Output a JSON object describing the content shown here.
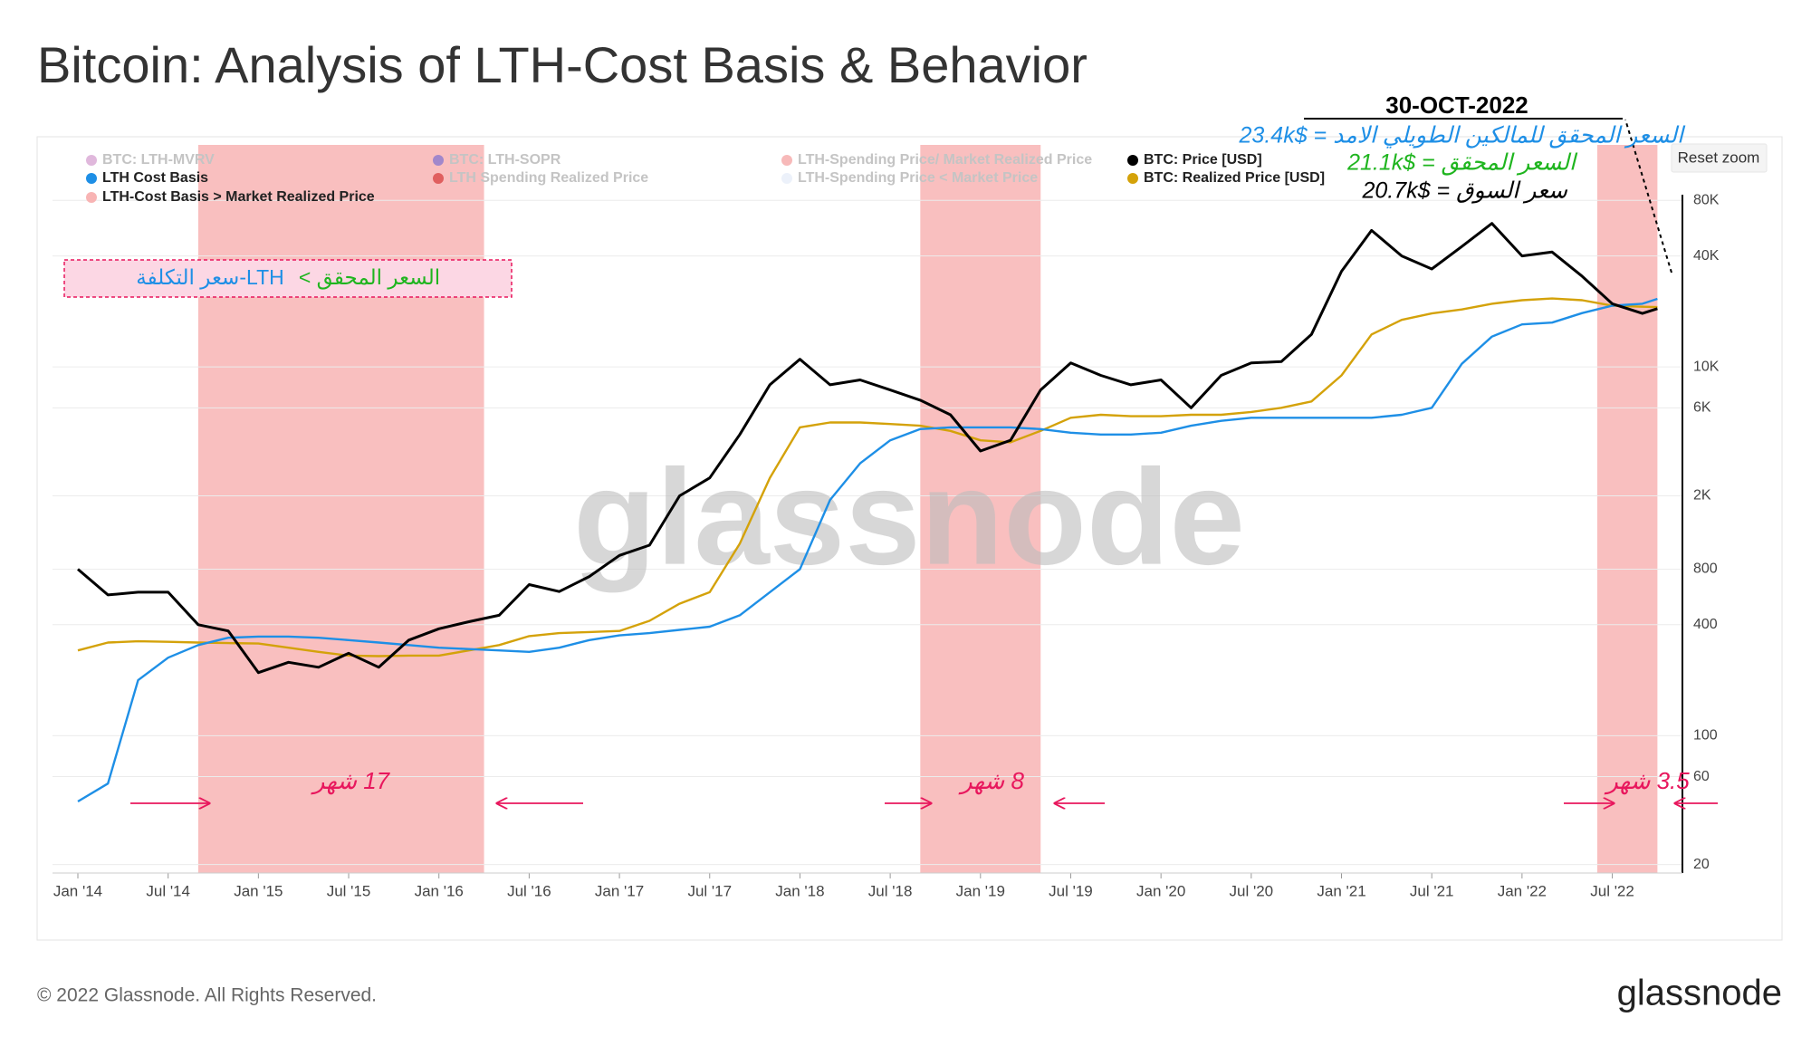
{
  "page": {
    "copyright": "© 2022 Glassnode. All Rights Reserved.",
    "logo": "glassnode",
    "watermark": "glassnode",
    "reset_zoom": "Reset zoom"
  },
  "chart_data": {
    "type": "line",
    "title": "Bitcoin: Analysis of LTH-Cost Basis &  Behavior",
    "x": [
      "2014-01",
      "2014-03",
      "2014-05",
      "2014-07",
      "2014-09",
      "2014-11",
      "2015-01",
      "2015-03",
      "2015-05",
      "2015-07",
      "2015-09",
      "2015-11",
      "2016-01",
      "2016-03",
      "2016-05",
      "2016-07",
      "2016-09",
      "2016-11",
      "2017-01",
      "2017-03",
      "2017-05",
      "2017-07",
      "2017-09",
      "2017-11",
      "2018-01",
      "2018-03",
      "2018-05",
      "2018-07",
      "2018-09",
      "2018-11",
      "2019-01",
      "2019-03",
      "2019-05",
      "2019-07",
      "2019-09",
      "2019-11",
      "2020-01",
      "2020-03",
      "2020-05",
      "2020-07",
      "2020-09",
      "2020-11",
      "2021-01",
      "2021-03",
      "2021-05",
      "2021-07",
      "2021-09",
      "2021-11",
      "2022-01",
      "2022-03",
      "2022-05",
      "2022-07",
      "2022-09",
      "2022-10"
    ],
    "series": [
      {
        "name": "BTC: Price [USD]",
        "color": "#000000",
        "width": 3,
        "values": [
          800,
          580,
          600,
          600,
          400,
          370,
          220,
          250,
          235,
          280,
          235,
          330,
          380,
          415,
          450,
          660,
          605,
          730,
          950,
          1080,
          2000,
          2500,
          4300,
          8000,
          11000,
          8000,
          8500,
          7500,
          6600,
          5500,
          3500,
          4000,
          7500,
          10500,
          9000,
          8000,
          8500,
          6000,
          9000,
          10500,
          10700,
          15000,
          33000,
          55000,
          40000,
          34000,
          45000,
          60000,
          40000,
          42000,
          31000,
          22000,
          19500,
          20700
        ]
      },
      {
        "name": "BTC: Realized Price [USD]",
        "color": "#d4a20a",
        "width": 2.4,
        "values": [
          290,
          320,
          325,
          323,
          320,
          318,
          316,
          300,
          285,
          272,
          270,
          272,
          272,
          290,
          310,
          347,
          360,
          365,
          370,
          420,
          520,
          600,
          1100,
          2500,
          4700,
          5000,
          5000,
          4900,
          4800,
          4500,
          4000,
          3900,
          4500,
          5300,
          5500,
          5400,
          5400,
          5500,
          5500,
          5700,
          6000,
          6500,
          9000,
          15000,
          18000,
          19500,
          20500,
          22000,
          23000,
          23500,
          23000,
          21500,
          21200,
          21100
        ]
      },
      {
        "name": "LTH Cost Basis",
        "color": "#1e8fe6",
        "width": 2.4,
        "values": [
          44,
          55,
          200,
          265,
          310,
          340,
          345,
          345,
          340,
          330,
          320,
          310,
          300,
          295,
          290,
          285,
          300,
          330,
          350,
          360,
          375,
          390,
          450,
          600,
          800,
          1900,
          3000,
          4000,
          4600,
          4700,
          4700,
          4700,
          4600,
          4400,
          4300,
          4300,
          4400,
          4800,
          5100,
          5300,
          5300,
          5300,
          5300,
          5300,
          5500,
          6000,
          10400,
          14600,
          17000,
          17400,
          19600,
          21500,
          22000,
          23400
        ]
      }
    ],
    "bands": {
      "name": "LTH-Cost Basis > Market Realized Price",
      "color": "#f8b4b4",
      "ranges": [
        [
          "2014-09",
          "2016-04"
        ],
        [
          "2018-09",
          "2019-05"
        ],
        [
          "2022-06",
          "2022-10"
        ]
      ]
    },
    "legend_items": [
      {
        "name": "BTC: LTH-MVRV",
        "color": "#c77dbf",
        "active": false
      },
      {
        "name": "BTC: LTH-SOPR",
        "color": "#5a5ad6",
        "active": false
      },
      {
        "name": "LTH-Spending Price/ Market Realized Price",
        "color": "#f08080",
        "active": false
      },
      {
        "name": "LTH Spending Realized Price",
        "color": "#cc1111",
        "active": false
      },
      {
        "name": "LTH-Spending Price < Market Price",
        "color": "#dde6f5",
        "active": false
      }
    ],
    "log_y": true,
    "grid": true,
    "xlim": [
      "2014-01",
      "2022-11"
    ],
    "xticks": [
      {
        "value": "2014-01",
        "label": "Jan '14"
      },
      {
        "value": "2014-07",
        "label": "Jul '14"
      },
      {
        "value": "2015-01",
        "label": "Jan '15"
      },
      {
        "value": "2015-07",
        "label": "Jul '15"
      },
      {
        "value": "2016-01",
        "label": "Jan '16"
      },
      {
        "value": "2016-07",
        "label": "Jul '16"
      },
      {
        "value": "2017-01",
        "label": "Jan '17"
      },
      {
        "value": "2017-07",
        "label": "Jul '17"
      },
      {
        "value": "2018-01",
        "label": "Jan '18"
      },
      {
        "value": "2018-07",
        "label": "Jul '18"
      },
      {
        "value": "2019-01",
        "label": "Jan '19"
      },
      {
        "value": "2019-07",
        "label": "Jul '19"
      },
      {
        "value": "2020-01",
        "label": "Jan '20"
      },
      {
        "value": "2020-07",
        "label": "Jul '20"
      },
      {
        "value": "2021-01",
        "label": "Jan '21"
      },
      {
        "value": "2021-07",
        "label": "Jul '21"
      },
      {
        "value": "2022-01",
        "label": "Jan '22"
      },
      {
        "value": "2022-07",
        "label": "Jul '22"
      }
    ],
    "ylim": [
      18,
      160000
    ],
    "yticks": [
      20,
      60,
      100,
      400,
      800,
      {
        "value": 2000,
        "label": "2K"
      },
      {
        "value": 6000,
        "label": "6K"
      },
      {
        "value": 10000,
        "label": "10K"
      },
      {
        "value": 40000,
        "label": "40K"
      },
      {
        "value": 80000,
        "label": "80K"
      }
    ],
    "annotations": {
      "date": "30-OCT-2022",
      "lth_cost_basis": "السعر المحقق للمالكين الطويلي الامد = $23.4k",
      "realized_price": "السعر المحقق = $21.1k",
      "market_price": "سعر السوق = $20.7k",
      "box_realized": "السعر المحقق >",
      "box_lth": "LTH-سعر التكلفة",
      "durations": [
        "17 شهر",
        "8 شهر",
        "3.5 شهر"
      ]
    }
  }
}
